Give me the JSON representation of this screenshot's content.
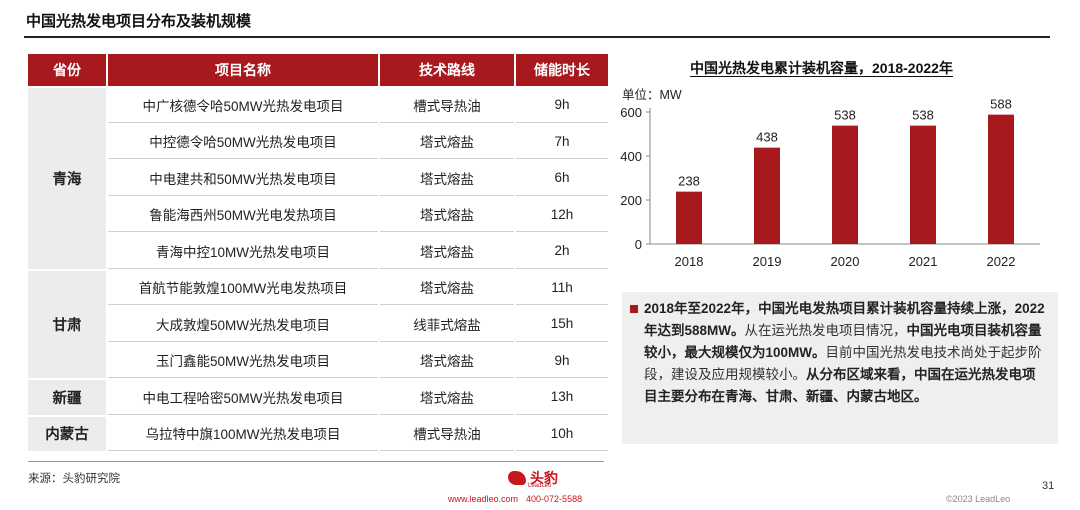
{
  "page": {
    "title": "中国光热发电项目分布及装机规模",
    "source": "来源：头豹研究院",
    "page_number": "31",
    "copyright": "©2023 LeadLeo",
    "brand": "头豹",
    "brand_sub": "LeadLeo",
    "website": "www.leadleo.com",
    "phone": "400-072-5588"
  },
  "table": {
    "headers": [
      "省份",
      "项目名称",
      "技术路线",
      "储能时长"
    ],
    "groups": [
      {
        "province": "青海",
        "rows": [
          [
            "中广核德令哈50MW光热发电项目",
            "槽式导热油",
            "9h"
          ],
          [
            "中控德令哈50MW光热发电项目",
            "塔式熔盐",
            "7h"
          ],
          [
            "中电建共和50MW光热发电项目",
            "塔式熔盐",
            "6h"
          ],
          [
            "鲁能海西州50MW光电发热项目",
            "塔式熔盐",
            "12h"
          ],
          [
            "青海中控10MW光热发电项目",
            "塔式熔盐",
            "2h"
          ]
        ]
      },
      {
        "province": "甘肃",
        "rows": [
          [
            "首航节能敦煌100MW光电发热项目",
            "塔式熔盐",
            "11h"
          ],
          [
            "大成敦煌50MW光热发电项目",
            "线菲式熔盐",
            "15h"
          ],
          [
            "玉门鑫能50MW光热发电项目",
            "塔式熔盐",
            "9h"
          ]
        ]
      },
      {
        "province": "新疆",
        "rows": [
          [
            "中电工程哈密50MW光热发电项目",
            "塔式熔盐",
            "13h"
          ]
        ]
      },
      {
        "province": "内蒙古",
        "rows": [
          [
            "乌拉特中旗100MW光热发电项目",
            "槽式导热油",
            "10h"
          ]
        ]
      }
    ]
  },
  "chart_data": {
    "type": "bar",
    "title": "中国光热发电累计装机容量，2018-2022年",
    "ylabel": "单位：MW",
    "categories": [
      "2018",
      "2019",
      "2020",
      "2021",
      "2022"
    ],
    "values": [
      238,
      438,
      538,
      538,
      588
    ],
    "ylim": [
      0,
      600
    ],
    "yticks": [
      0,
      200,
      400,
      600
    ],
    "color": "#a8191e",
    "grid": false,
    "legend": "none"
  },
  "note": {
    "segments": [
      {
        "bold": true,
        "text": "2018年至2022年，中国光电发热项目累计装机容量持续上涨，2022年达到588MW。"
      },
      {
        "bold": false,
        "text": "从在运光热发电项目情况，"
      },
      {
        "bold": true,
        "text": "中国光电项目装机容量较小，最大规模仅为100MW。"
      },
      {
        "bold": false,
        "text": "目前中国光热发电技术尚处于起步阶段，建设及应用规模较小。"
      },
      {
        "bold": true,
        "text": "从分布区域来看，中国在运光热发电项目主要分布在青海、甘肃、新疆、内蒙古地区。"
      }
    ]
  }
}
